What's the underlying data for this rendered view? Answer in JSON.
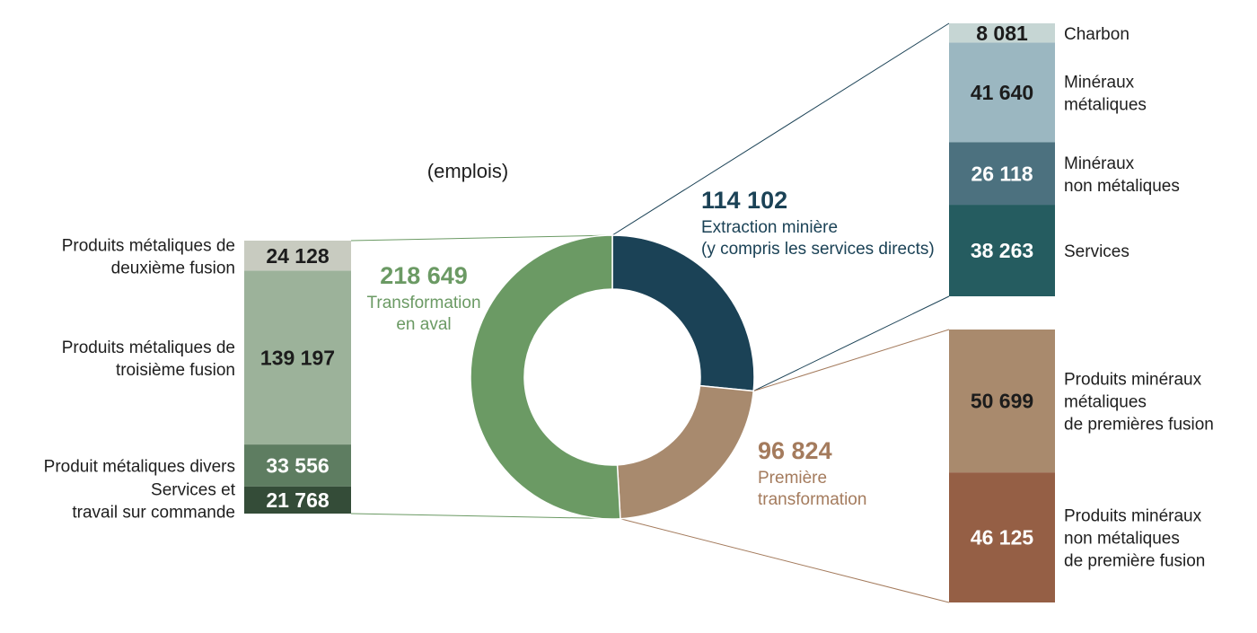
{
  "chart_data": {
    "type": "pie",
    "unit_label": "(emplois)",
    "donut": {
      "segments": [
        {
          "key": "extraction",
          "value": 114102,
          "value_text": "114 102",
          "label_lines": [
            "Extraction minière",
            "(y compris les services directs)"
          ],
          "color": "#1b4256"
        },
        {
          "key": "premiere",
          "value": 96824,
          "value_text": "96 824",
          "label_lines": [
            "Première",
            "transformation"
          ],
          "color": "#a88a6e"
        },
        {
          "key": "aval",
          "value": 218649,
          "value_text": "218 649",
          "label_lines": [
            "Transformation",
            "en aval"
          ],
          "color": "#6b9a64"
        }
      ],
      "text_colors": {
        "extraction": "#1b4256",
        "premiere": "#a47b5d",
        "aval": "#6b9a64"
      }
    },
    "breakdowns": {
      "left_aval": [
        {
          "value": 24128,
          "value_text": "24 128",
          "label_lines": [
            "Produits métaliques de",
            "deuxième fusion"
          ],
          "color": "#c8cbc0",
          "text_dark": true
        },
        {
          "value": 139197,
          "value_text": "139 197",
          "label_lines": [
            "Produits métaliques de",
            "troisième fusion"
          ],
          "color": "#9cb29a",
          "text_dark": true
        },
        {
          "value": 33556,
          "value_text": "33 556",
          "label_lines": [
            "Produit métaliques divers"
          ],
          "color": "#5e7d61",
          "text_dark": false
        },
        {
          "value": 21768,
          "value_text": "21 768",
          "label_lines": [
            "Services et",
            "travail sur commande"
          ],
          "color": "#344c38",
          "text_dark": false
        }
      ],
      "right_extraction": [
        {
          "value": 8081,
          "value_text": "8 081",
          "label_lines": [
            "Charbon"
          ],
          "color": "#c6d6d4",
          "text_dark": true
        },
        {
          "value": 41640,
          "value_text": "41 640",
          "label_lines": [
            "Minéraux",
            "métaliques"
          ],
          "color": "#9bb7c1",
          "text_dark": true
        },
        {
          "value": 26118,
          "value_text": "26 118",
          "label_lines": [
            "Minéraux",
            "non métaliques"
          ],
          "color": "#4c717f",
          "text_dark": false
        },
        {
          "value": 38263,
          "value_text": "38 263",
          "label_lines": [
            "Services"
          ],
          "color": "#255c60",
          "text_dark": false
        }
      ],
      "right_premiere": [
        {
          "value": 50699,
          "value_text": "50 699",
          "label_lines": [
            "Produits minéraux",
            "métaliques",
            "de premières fusion"
          ],
          "color": "#a98a6d",
          "text_dark": true
        },
        {
          "value": 46125,
          "value_text": "46 125",
          "label_lines": [
            "Produits minéraux",
            "non métaliques",
            "de première fusion"
          ],
          "color": "#955f45",
          "text_dark": false
        }
      ]
    }
  }
}
